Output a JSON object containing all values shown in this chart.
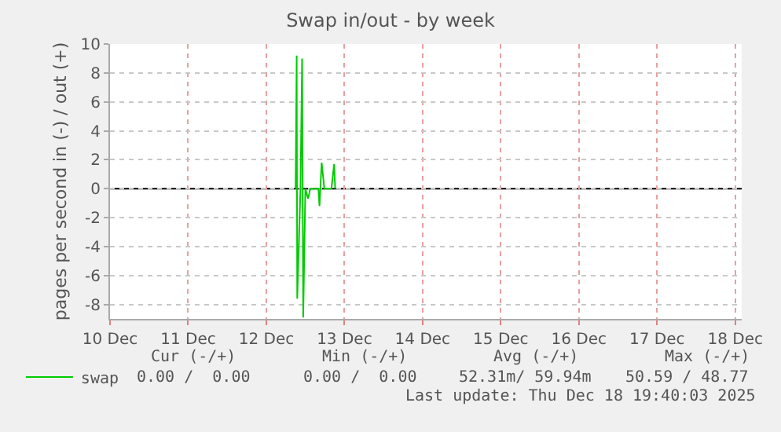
{
  "chart_data": {
    "type": "line",
    "title": "Swap in/out - by week",
    "ylabel": "pages per second in (-) / out (+)",
    "x": [
      "2025-12-12T09:00",
      "2025-12-12T09:20",
      "2025-12-12T09:30",
      "2025-12-12T10:30",
      "2025-12-12T11:00",
      "2025-12-12T11:20",
      "2025-12-12T12:00",
      "2025-12-12T12:50",
      "2025-12-12T13:30",
      "2025-12-12T16:00",
      "2025-12-12T16:20",
      "2025-12-12T17:00",
      "2025-12-12T17:50",
      "2025-12-12T20:00",
      "2025-12-12T20:50",
      "2025-12-12T21:10"
    ],
    "series": [
      {
        "name": "swap",
        "color": "#00cc00",
        "values": [
          0,
          9.2,
          -7.6,
          0,
          9.0,
          -8.9,
          0,
          -0.7,
          0,
          0,
          -1.2,
          1.8,
          0,
          0,
          1.7,
          0
        ]
      }
    ],
    "xlim": [
      "2025-12-10",
      "2025-12-18T02:00"
    ],
    "xticks": [
      {
        "value": "2025-12-10",
        "label": "10 Dec"
      },
      {
        "value": "2025-12-11",
        "label": "11 Dec"
      },
      {
        "value": "2025-12-12",
        "label": "12 Dec"
      },
      {
        "value": "2025-12-13",
        "label": "13 Dec"
      },
      {
        "value": "2025-12-14",
        "label": "14 Dec"
      },
      {
        "value": "2025-12-15",
        "label": "15 Dec"
      },
      {
        "value": "2025-12-16",
        "label": "16 Dec"
      },
      {
        "value": "2025-12-17",
        "label": "17 Dec"
      },
      {
        "value": "2025-12-18",
        "label": "18 Dec"
      }
    ],
    "ylim": [
      -9,
      10
    ],
    "yticks": [
      -8,
      -6,
      -4,
      -2,
      0,
      2,
      4,
      6,
      8,
      10
    ],
    "ref_lines": [
      {
        "axis": "y",
        "value": 0,
        "label": null,
        "color": "#000000"
      }
    ],
    "grid": true,
    "legend": "bottom left",
    "marker": "none",
    "line_style": "solid",
    "annotations": [
      "Cur (-/+)",
      "Min (-/+)",
      "Avg (-/+)",
      "Max (-/+)",
      "0.00 /  0.00",
      "0.00 /  0.00",
      "52.31m/ 59.94m",
      "50.59 / 48.77",
      "Last update: Thu Dec 18 19:40:03 2025"
    ]
  }
}
